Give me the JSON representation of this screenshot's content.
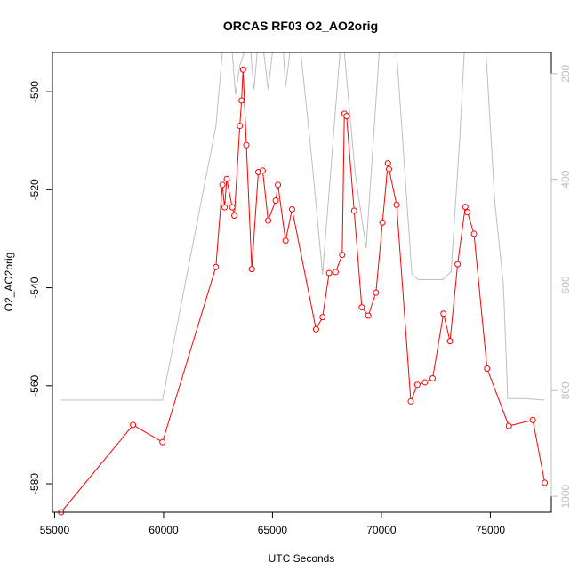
{
  "chart_data": {
    "type": "line",
    "title": "ORCAS RF03 O2_AO2orig",
    "xlabel": "UTC Seconds",
    "ylabel": "O2_AO2orig",
    "xlim": [
      54900,
      77800
    ],
    "ylim": [
      -585.8,
      -492.0
    ],
    "x_ticks": [
      55000,
      60000,
      65000,
      70000,
      75000
    ],
    "x_tick_labels": [
      "55000",
      "60000",
      "65000",
      "70000",
      "75000"
    ],
    "y_ticks": [
      -580,
      -560,
      -540,
      -520,
      -500
    ],
    "y_tick_labels": [
      "-580",
      "-560",
      "-540",
      "-520",
      "-500"
    ],
    "y2lim": [
      1030,
      160
    ],
    "y2_ticks": [
      200,
      400,
      600,
      800,
      1000
    ],
    "y2_tick_labels": [
      "200",
      "400",
      "600",
      "800",
      "1000"
    ],
    "grid": false,
    "colors": {
      "series": "#ff0000",
      "secondary": "#bebebe",
      "axis": "#000000",
      "secondary_axis": "#bebebe"
    },
    "series": [
      {
        "x": [
          55300,
          58600,
          59950,
          62400,
          62700,
          62800,
          62900,
          63150,
          63250,
          63500,
          63580,
          63650,
          63800,
          64050,
          64350,
          64550,
          64800,
          65150,
          65250,
          65600,
          65900,
          67000,
          67300,
          67600,
          67900,
          68200,
          68300,
          68400,
          68750,
          69100,
          69400,
          69750,
          70050,
          70300,
          70350,
          70700,
          71350,
          71650,
          72000,
          72350,
          72850,
          73150,
          73500,
          73850,
          73950,
          74250,
          74850,
          75850,
          76950,
          77500
        ],
        "y": [
          -585.8,
          -568.0,
          -571.5,
          -535.8,
          -519.0,
          -523.6,
          -517.8,
          -523.6,
          -525.3,
          -507.0,
          -501.8,
          -495.5,
          -510.9,
          -536.2,
          -516.4,
          -516.1,
          -526.3,
          -522.2,
          -519.0,
          -530.4,
          -524.0,
          -548.5,
          -546.0,
          -537.0,
          -536.8,
          -533.3,
          -504.5,
          -505.0,
          -524.3,
          -544.0,
          -545.7,
          -541.0,
          -526.7,
          -514.6,
          -515.8,
          -523.1,
          -563.2,
          -559.8,
          -559.3,
          -558.5,
          -545.3,
          -550.9,
          -535.2,
          -523.5,
          -524.6,
          -529.0,
          -556.5,
          -568.2,
          -567.0,
          -579.8
        ]
      },
      {
        "x": [
          55300,
          59950,
          62400,
          62700,
          62800,
          63000,
          63150,
          63300,
          63500,
          63700,
          64000,
          64150,
          64300,
          64500,
          64600,
          64800,
          65000,
          65300,
          65500,
          65600,
          65800,
          66000,
          66300,
          66800,
          67300,
          68100,
          68300,
          68800,
          69300,
          69900,
          70400,
          70700,
          71400,
          71700,
          72200,
          72800,
          73200,
          73600,
          73800,
          74200,
          74800,
          75200,
          75600,
          75800,
          76600,
          77500
        ],
        "y": [
          818,
          818,
          300,
          160,
          160,
          160,
          160,
          240,
          185,
          160,
          160,
          230,
          160,
          160,
          160,
          230,
          160,
          160,
          160,
          225,
          160,
          160,
          160,
          360,
          580,
          160,
          160,
          390,
          530,
          160,
          160,
          160,
          580,
          590,
          590,
          590,
          575,
          320,
          160,
          160,
          160,
          440,
          600,
          815,
          815,
          818
        ]
      }
    ]
  }
}
